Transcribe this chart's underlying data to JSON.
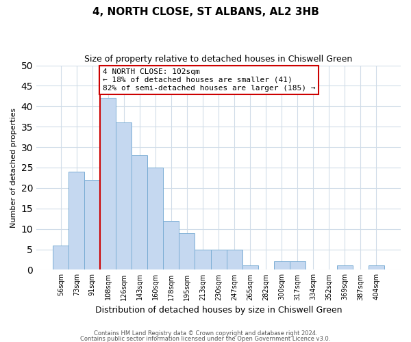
{
  "title": "4, NORTH CLOSE, ST ALBANS, AL2 3HB",
  "subtitle": "Size of property relative to detached houses in Chiswell Green",
  "xlabel": "Distribution of detached houses by size in Chiswell Green",
  "ylabel": "Number of detached properties",
  "bin_labels": [
    "56sqm",
    "73sqm",
    "91sqm",
    "108sqm",
    "126sqm",
    "143sqm",
    "160sqm",
    "178sqm",
    "195sqm",
    "213sqm",
    "230sqm",
    "247sqm",
    "265sqm",
    "282sqm",
    "300sqm",
    "317sqm",
    "334sqm",
    "352sqm",
    "369sqm",
    "387sqm",
    "404sqm"
  ],
  "bin_values": [
    6,
    24,
    22,
    42,
    36,
    28,
    25,
    12,
    9,
    5,
    5,
    5,
    1,
    0,
    2,
    2,
    0,
    0,
    1,
    0,
    1
  ],
  "bar_color": "#c5d8f0",
  "bar_edge_color": "#7aadd4",
  "marker_line_color": "#cc0000",
  "annotation_text": "4 NORTH CLOSE: 102sqm\n← 18% of detached houses are smaller (41)\n82% of semi-detached houses are larger (185) →",
  "annotation_box_color": "#cc0000",
  "ylim": [
    0,
    50
  ],
  "yticks": [
    0,
    5,
    10,
    15,
    20,
    25,
    30,
    35,
    40,
    45,
    50
  ],
  "footer1": "Contains HM Land Registry data © Crown copyright and database right 2024.",
  "footer2": "Contains public sector information licensed under the Open Government Licence v3.0.",
  "background_color": "#ffffff",
  "grid_color": "#d0dce8",
  "title_fontsize": 11,
  "subtitle_fontsize": 9,
  "ylabel_fontsize": 8,
  "xlabel_fontsize": 9,
  "tick_fontsize": 7,
  "annotation_fontsize": 8,
  "footer_fontsize": 6
}
